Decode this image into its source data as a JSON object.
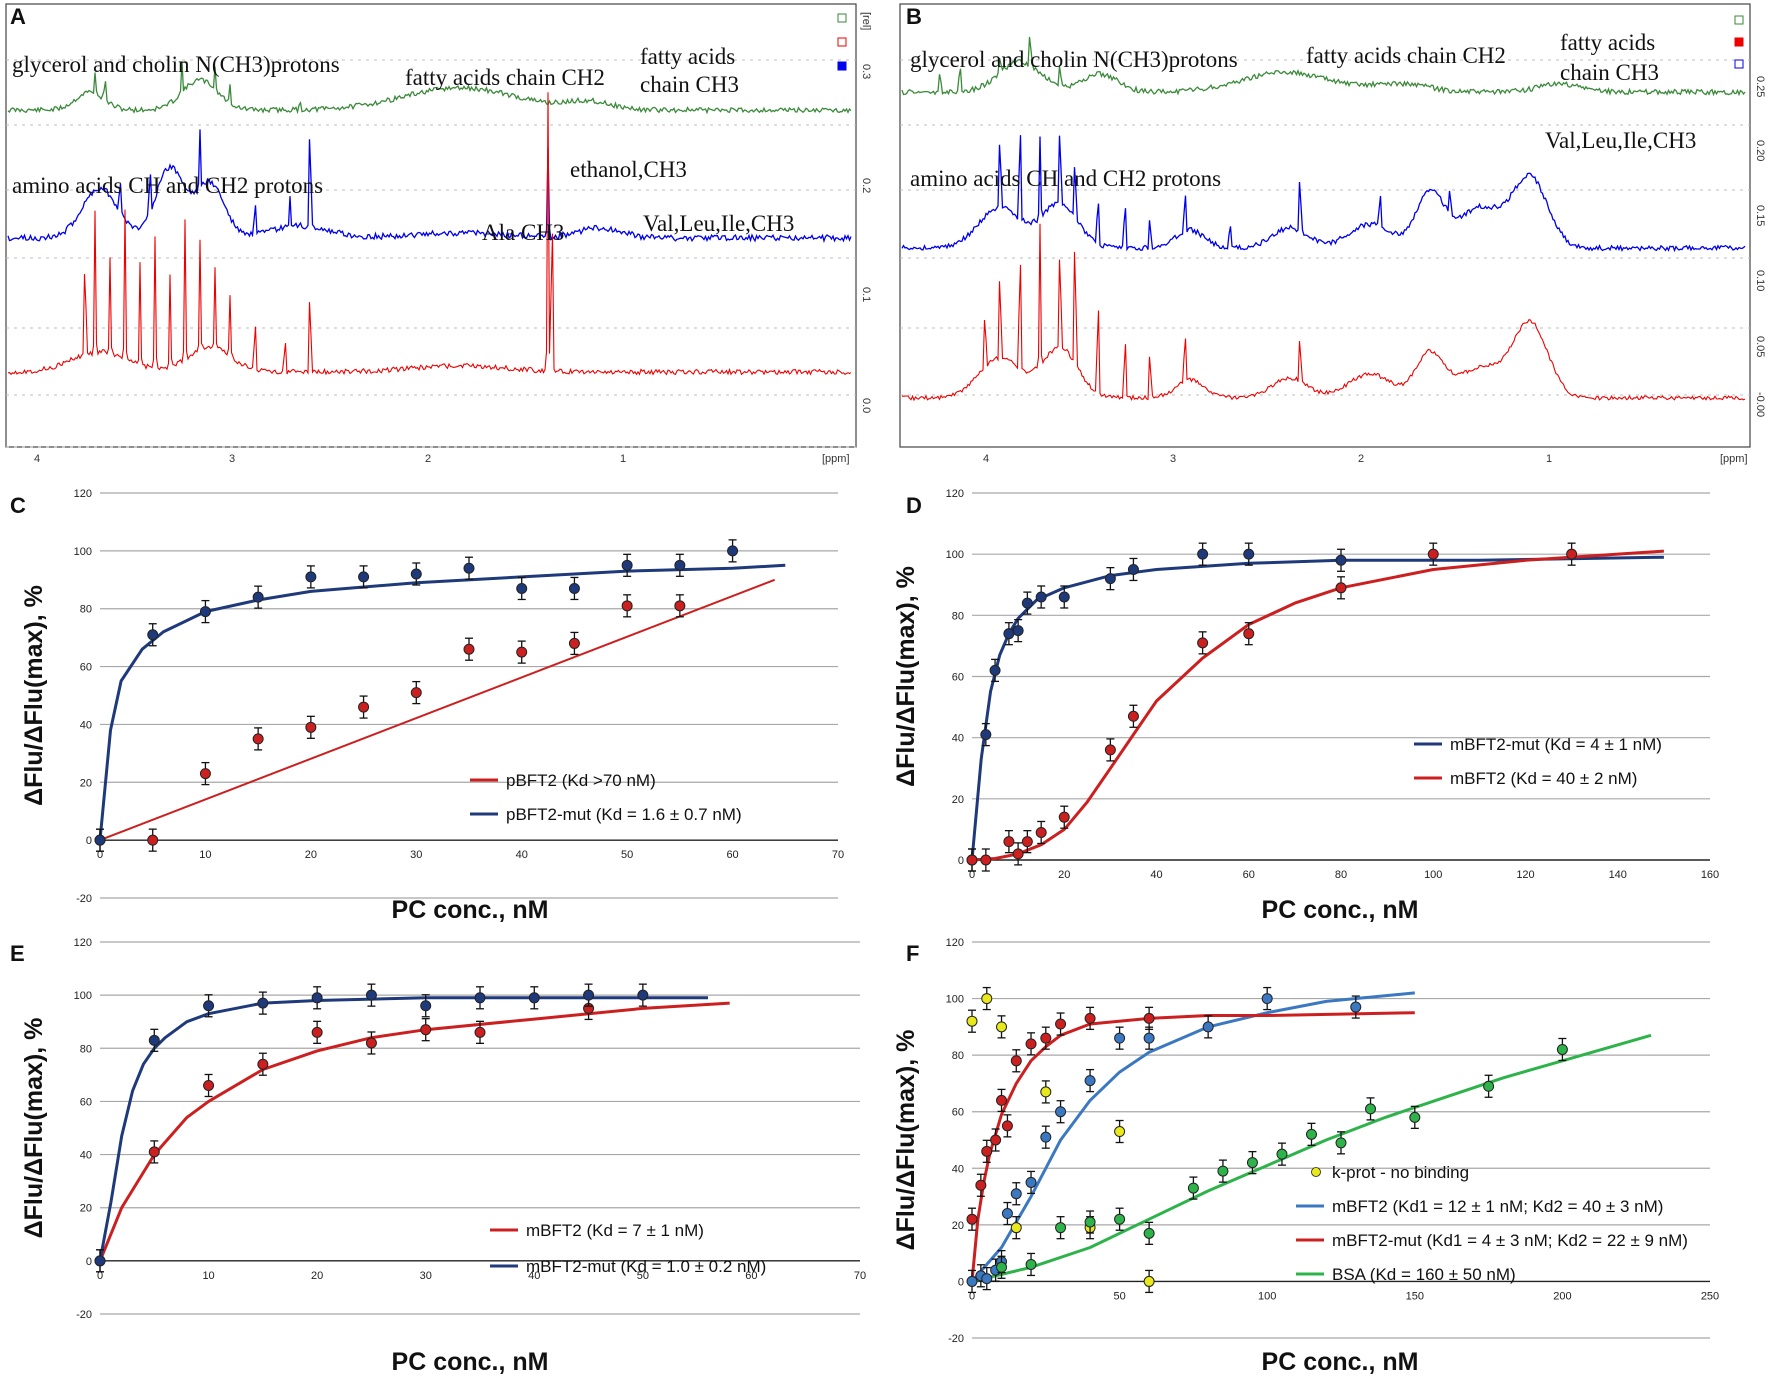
{
  "nmr": {
    "A": {
      "letter": "A",
      "x_unit": "[ppm]",
      "y_unit": "[rel]",
      "x_ticks": [
        "4",
        "3",
        "2",
        "1"
      ],
      "y_ticks": [
        "0.3",
        "0.2",
        "0.1",
        "0.0"
      ],
      "annotations": [
        "glycerol and cholin N(CH3)protons",
        "fatty acids chain CH2",
        "fatty acids",
        "chain CH3",
        "amino acids CH and CH2 protons",
        "ethanol,CH3",
        "Ala CH3",
        "Val,Leu,Ile,CH3"
      ],
      "colors": {
        "top": "#3a8a3a",
        "middle": "#0000ee",
        "bottom": "#ee0000"
      }
    },
    "B": {
      "letter": "B",
      "x_unit": "[ppm]",
      "y_ticks": [
        "0.25",
        "0.20",
        "0.15",
        "0.10",
        "0.05",
        "-0.00"
      ],
      "x_ticks": [
        "4",
        "3",
        "2",
        "1"
      ],
      "annotations": [
        "glycerol and cholin N(CH3)protons",
        "fatty acids chain CH2",
        "fatty acids",
        "chain CH3",
        "Val,Leu,Ile,CH3",
        "amino acids CH and CH2 protons"
      ],
      "colors": {
        "top": "#3a8a3a",
        "middle": "#0000ee",
        "bottom": "#ee0000"
      }
    }
  },
  "chart_data": [
    {
      "panel": "C",
      "type": "scatter",
      "xlabel": "PC conc., nM",
      "ylabel": "ΔFlu/ΔFlu(max), %",
      "xlim": [
        0,
        70
      ],
      "ylim": [
        -20,
        120
      ],
      "x_ticks": [
        0,
        10,
        20,
        30,
        40,
        50,
        60,
        70
      ],
      "y_ticks": [
        -20,
        0,
        20,
        40,
        60,
        80,
        100,
        120
      ],
      "series": [
        {
          "name": "pBFT2 (Kd >70 nM)",
          "color": "#cc1f1f",
          "x": [
            0,
            5,
            10,
            15,
            20,
            25,
            30,
            35,
            40,
            45,
            50,
            55
          ],
          "y": [
            0,
            0,
            23,
            35,
            39,
            46,
            51,
            66,
            65,
            68,
            81,
            81
          ],
          "fit_x": [
            0,
            64
          ],
          "fit_y": [
            0,
            90
          ]
        },
        {
          "name": "pBFT2-mut (Kd = 1.6 ± 0.7 nM)",
          "color": "#1f3a7a",
          "x": [
            0,
            5,
            10,
            15,
            20,
            25,
            30,
            35,
            40,
            45,
            50,
            55,
            60
          ],
          "y": [
            0,
            71,
            79,
            84,
            91,
            91,
            92,
            94,
            87,
            87,
            95,
            95,
            100
          ],
          "fit_x": [
            0,
            1,
            2,
            4,
            6,
            10,
            15,
            20,
            30,
            40,
            50,
            60,
            65
          ],
          "fit_y": [
            0,
            38,
            55,
            66,
            72,
            79,
            83,
            86,
            89,
            91,
            93,
            94,
            95
          ]
        }
      ]
    },
    {
      "panel": "D",
      "type": "scatter",
      "xlabel": "PC conc., nM",
      "ylabel": "ΔFlu/ΔFlu(max), %",
      "xlim": [
        0,
        160
      ],
      "ylim": [
        0,
        120
      ],
      "x_ticks": [
        0,
        20,
        40,
        60,
        80,
        100,
        120,
        140,
        160
      ],
      "y_ticks": [
        0,
        20,
        40,
        60,
        80,
        100,
        120
      ],
      "series": [
        {
          "name": "mBFT2-mut (Kd = 4 ± 1 nM)",
          "color": "#1f3a7a",
          "x": [
            0,
            3,
            5,
            8,
            10,
            12,
            15,
            20,
            30,
            35,
            50,
            60,
            80
          ],
          "y": [
            0,
            41,
            62,
            74,
            75,
            84,
            86,
            86,
            92,
            95,
            100,
            100,
            98
          ],
          "fit_x": [
            0,
            2,
            4,
            6,
            8,
            10,
            14,
            20,
            30,
            40,
            60,
            80,
            110,
            150
          ],
          "fit_y": [
            0,
            33,
            55,
            67,
            74,
            79,
            85,
            89,
            93,
            95,
            97,
            98,
            98,
            99
          ]
        },
        {
          "name": "mBFT2 (Kd = 40 ± 2 nM)",
          "color": "#cc1f1f",
          "x": [
            0,
            3,
            8,
            10,
            12,
            15,
            20,
            30,
            35,
            50,
            60,
            80,
            100,
            130
          ],
          "y": [
            0,
            0,
            6,
            2,
            6,
            9,
            14,
            36,
            47,
            71,
            74,
            89,
            100,
            100
          ],
          "fit_x": [
            0,
            5,
            10,
            15,
            20,
            25,
            30,
            35,
            40,
            50,
            60,
            70,
            80,
            100,
            120,
            150
          ],
          "fit_y": [
            0,
            0.5,
            2,
            5,
            10,
            19,
            30,
            41,
            52,
            66,
            77,
            84,
            89,
            95,
            98,
            101
          ]
        }
      ]
    },
    {
      "panel": "E",
      "type": "scatter",
      "xlabel": "PC conc., nM",
      "ylabel": "ΔFlu/ΔFlu(max), %",
      "xlim": [
        0,
        70
      ],
      "ylim": [
        -20,
        120
      ],
      "x_ticks": [
        0,
        10,
        20,
        30,
        40,
        50,
        60,
        70
      ],
      "y_ticks": [
        -20,
        0,
        20,
        40,
        60,
        80,
        100,
        120
      ],
      "series": [
        {
          "name": "mBFT2 (Kd = 7 ± 1 nM)",
          "color": "#cc1f1f",
          "x": [
            0,
            5,
            10,
            15,
            20,
            25,
            30,
            35,
            45
          ],
          "y": [
            0,
            41,
            66,
            74,
            86,
            82,
            87,
            86,
            95
          ],
          "fit_x": [
            0,
            2,
            5,
            8,
            10,
            15,
            20,
            25,
            30,
            40,
            50,
            58
          ],
          "fit_y": [
            0,
            20,
            40,
            54,
            60,
            72,
            79,
            84,
            87,
            91,
            95,
            97
          ]
        },
        {
          "name": "mBFT2-mut (Kd = 1.0 ± 0.2 nM)",
          "color": "#1f3a7a",
          "x": [
            0,
            5,
            10,
            15,
            20,
            25,
            30,
            35,
            40,
            45,
            50
          ],
          "y": [
            0,
            83,
            96,
            97,
            99,
            100,
            96,
            99,
            99,
            100,
            100
          ],
          "fit_x": [
            0,
            1,
            2,
            3,
            4,
            5,
            6,
            8,
            10,
            15,
            20,
            30,
            40,
            56
          ],
          "fit_y": [
            0,
            22,
            47,
            64,
            74,
            80,
            84,
            90,
            93,
            97,
            98,
            99,
            99,
            99
          ]
        }
      ]
    },
    {
      "panel": "F",
      "type": "scatter",
      "xlabel": "PC conc., nM",
      "ylabel": "ΔFlu/ΔFlu(max), %",
      "xlim": [
        0,
        250
      ],
      "ylim": [
        -20,
        120
      ],
      "x_ticks": [
        0,
        50,
        100,
        150,
        200,
        250
      ],
      "y_ticks": [
        -20,
        0,
        20,
        40,
        60,
        80,
        100,
        120
      ],
      "series": [
        {
          "name": "k-prot  - no binding",
          "color": "#e8e81a",
          "x": [
            0,
            5,
            10,
            15,
            25,
            40,
            50,
            60
          ],
          "y": [
            92,
            100,
            90,
            19,
            67,
            19,
            53,
            0
          ]
        },
        {
          "name": "mBFT2 (Kd1 = 12 ± 1 nM; Kd2 = 40 ± 3 nM)",
          "color": "#3b78c2",
          "x": [
            0,
            3,
            5,
            8,
            10,
            12,
            15,
            20,
            25,
            30,
            40,
            50,
            60,
            80,
            100,
            130
          ],
          "y": [
            0,
            2,
            1,
            4,
            7,
            24,
            31,
            35,
            51,
            60,
            71,
            86,
            86,
            90,
            100,
            97
          ],
          "fit_x": [
            0,
            10,
            20,
            30,
            40,
            50,
            60,
            80,
            100,
            120,
            150
          ],
          "fit_y": [
            0,
            12,
            30,
            50,
            64,
            74,
            81,
            90,
            95,
            99,
            102
          ]
        },
        {
          "name": "mBFT2-mut (Kd1 = 4 ± 3 nM; Kd2 = 22 ± 9 nM)",
          "color": "#cc1f1f",
          "x": [
            0,
            3,
            5,
            8,
            10,
            12,
            15,
            20,
            25,
            30,
            40,
            60
          ],
          "y": [
            22,
            34,
            46,
            50,
            64,
            55,
            78,
            84,
            86,
            91,
            93,
            93
          ],
          "fit_x": [
            0,
            2,
            4,
            6,
            8,
            10,
            15,
            20,
            25,
            30,
            40,
            60,
            80,
            100,
            150
          ],
          "fit_y": [
            0,
            22,
            35,
            45,
            52,
            59,
            70,
            78,
            83,
            87,
            91,
            93,
            94,
            94,
            95
          ]
        },
        {
          "name": "BSA (Kd = 160 ± 50 nM)",
          "color": "#2db34a",
          "x": [
            10,
            20,
            30,
            40,
            50,
            60,
            75,
            85,
            95,
            105,
            115,
            125,
            135,
            150,
            175,
            200
          ],
          "y": [
            5,
            6,
            19,
            21,
            22,
            17,
            33,
            39,
            42,
            45,
            52,
            49,
            61,
            58,
            69,
            82
          ],
          "fit_x": [
            0,
            20,
            40,
            60,
            80,
            100,
            120,
            140,
            160,
            180,
            200,
            230
          ],
          "fit_y": [
            0,
            5,
            12,
            22,
            32,
            41,
            50,
            58,
            65,
            72,
            78,
            87
          ]
        }
      ]
    }
  ]
}
